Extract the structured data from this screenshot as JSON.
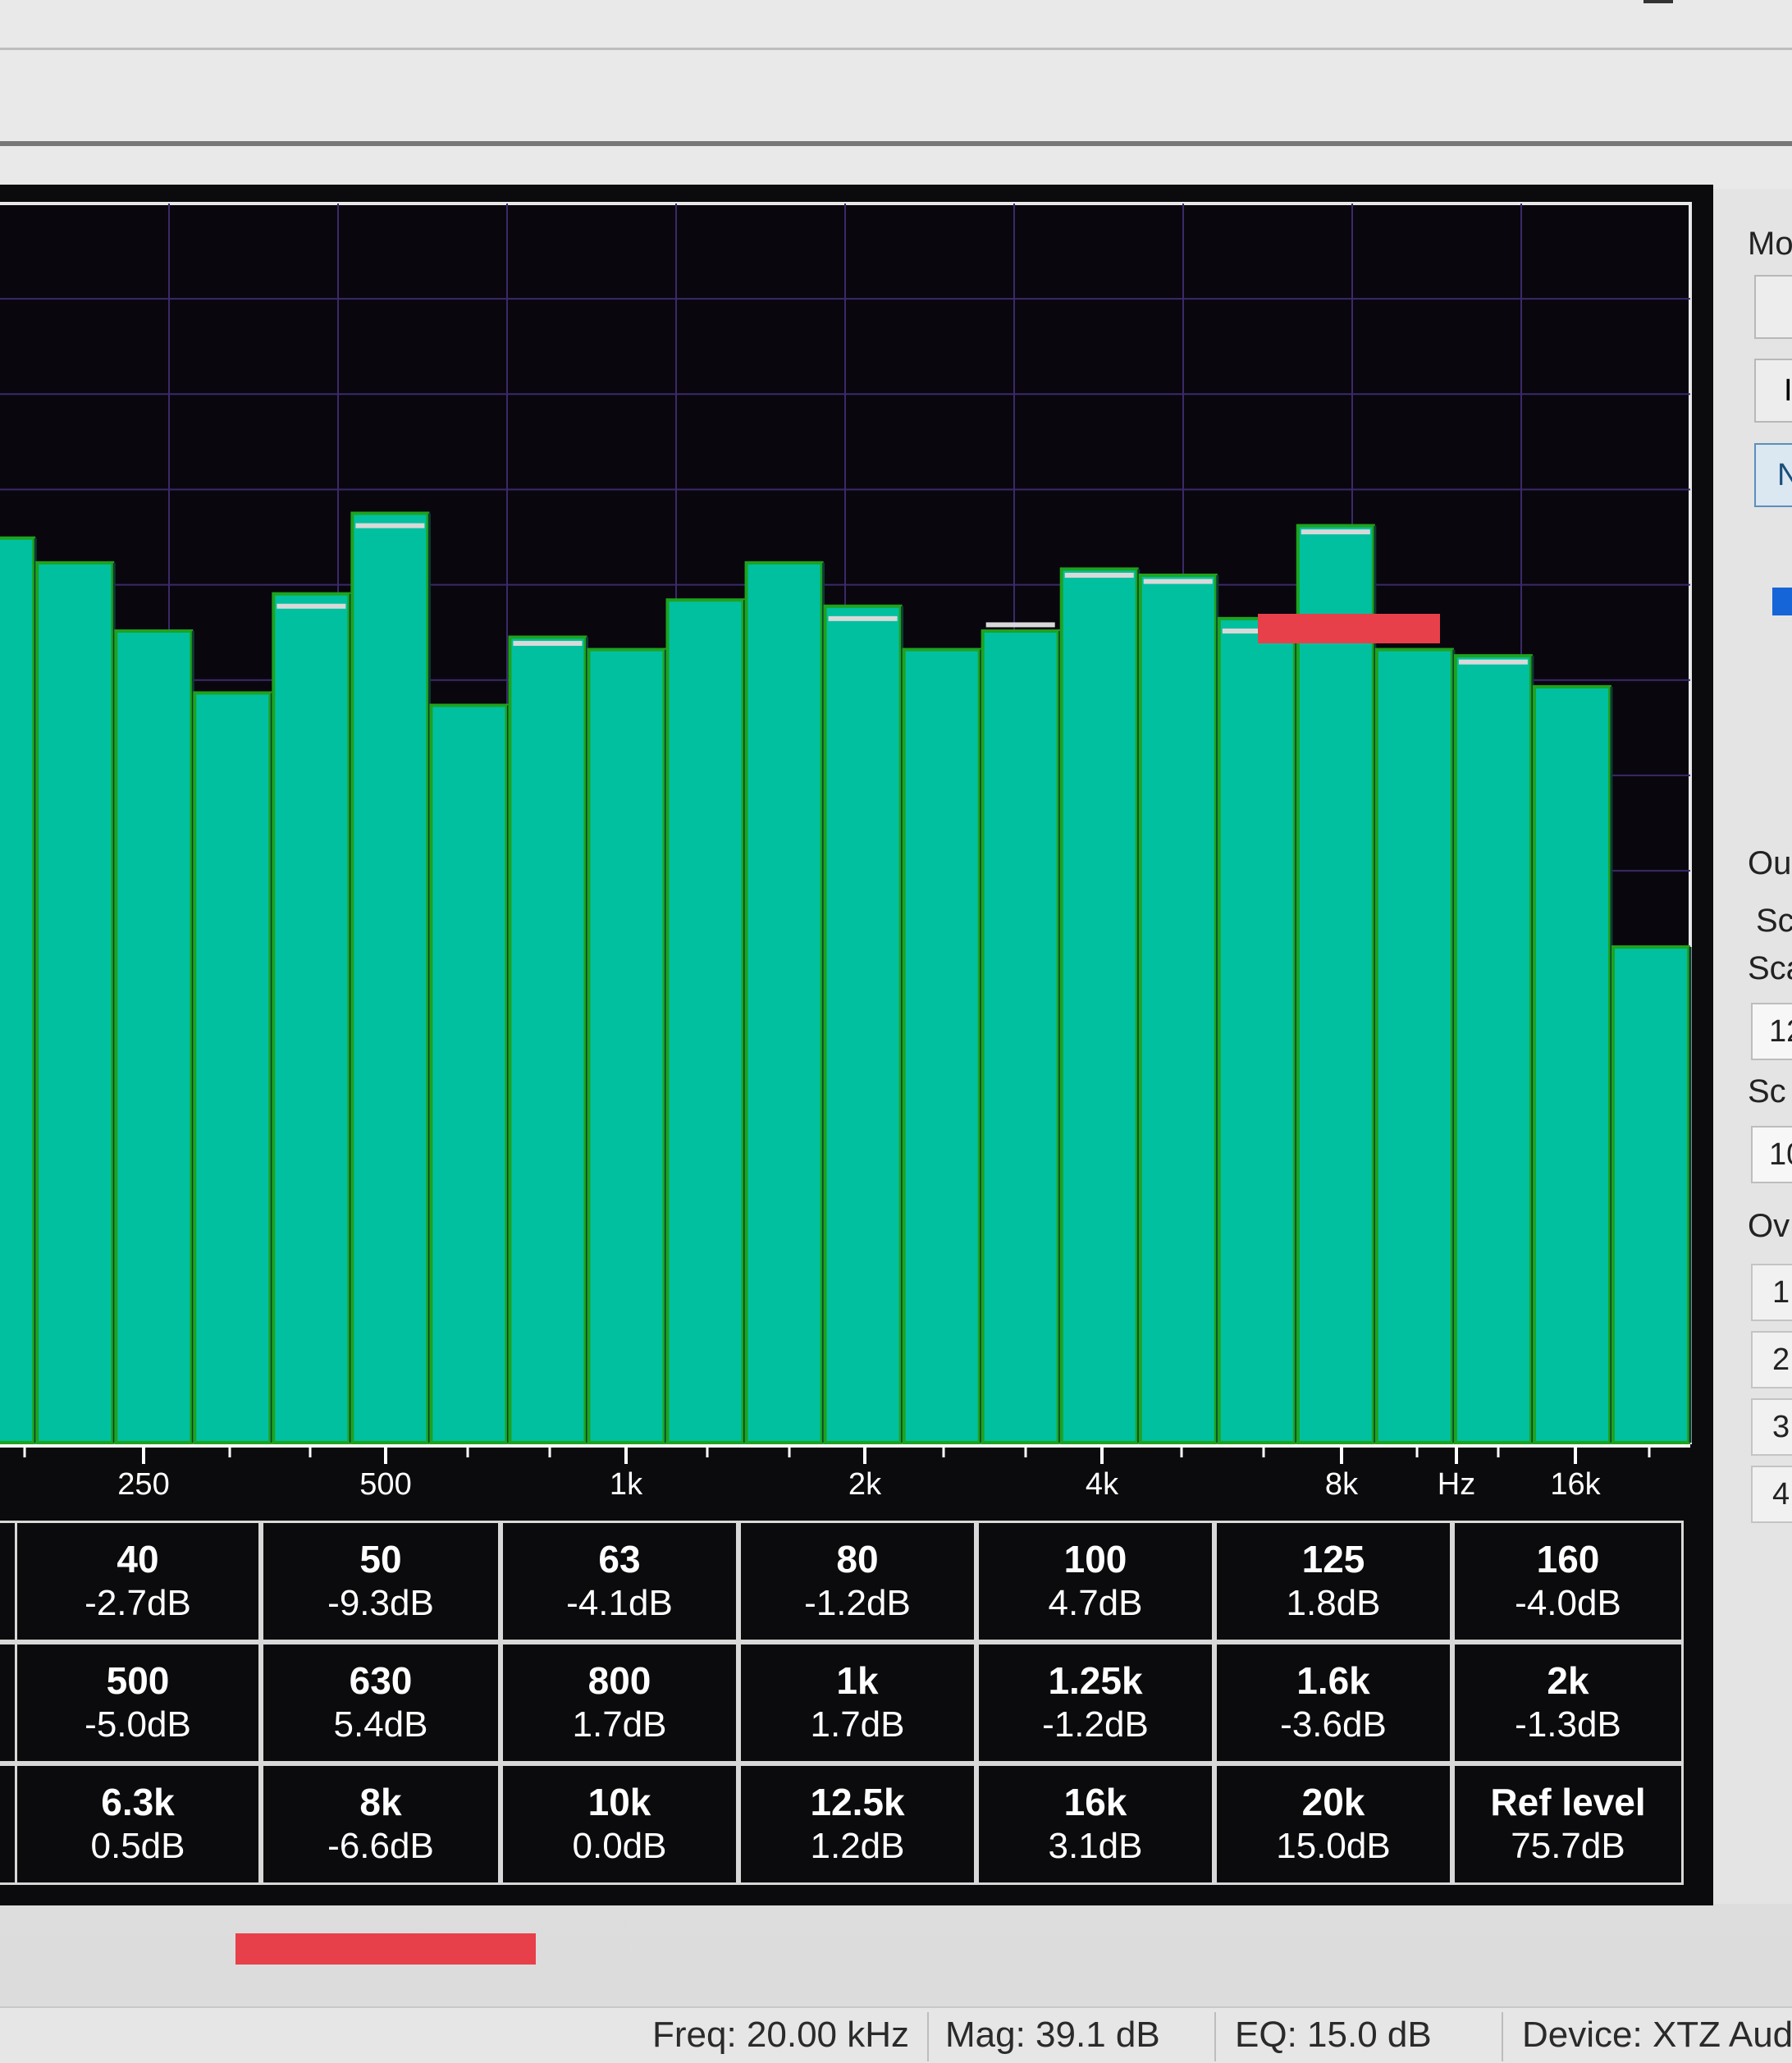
{
  "chart_data": {
    "type": "bar",
    "title": "",
    "xlabel": "",
    "ylabel": "",
    "x_unit_label": "Hz",
    "x_ticks": [
      "250",
      "500",
      "1k",
      "2k",
      "4k",
      "8k",
      "Hz",
      "16k"
    ],
    "levels": [
      0.73,
      0.71,
      0.655,
      0.605,
      0.685,
      0.75,
      0.595,
      0.65,
      0.64,
      0.68,
      0.71,
      0.675,
      0.64,
      0.655,
      0.705,
      0.7,
      0.665,
      0.74,
      0.64,
      0.635,
      0.61,
      0.4
    ],
    "peak_marker_levels": [
      null,
      null,
      null,
      null,
      0.675,
      0.74,
      null,
      0.645,
      null,
      null,
      null,
      0.665,
      null,
      0.66,
      0.7,
      0.695,
      0.655,
      0.735,
      null,
      0.63,
      null,
      null
    ],
    "bar_color": "#00c0a0",
    "bar_outline_color": "#1ea31e",
    "peak_marker_color": "#d9d9d9",
    "background_color": "#0a060e",
    "grid_color": "#3a2a6a"
  },
  "band_table": {
    "rows": [
      [
        {
          "freq": "40",
          "gain": "-2.7dB"
        },
        {
          "freq": "50",
          "gain": "-9.3dB"
        },
        {
          "freq": "63",
          "gain": "-4.1dB"
        },
        {
          "freq": "80",
          "gain": "-1.2dB"
        },
        {
          "freq": "100",
          "gain": "4.7dB"
        },
        {
          "freq": "125",
          "gain": "1.8dB"
        },
        {
          "freq": "160",
          "gain": "-4.0dB"
        }
      ],
      [
        {
          "freq": "500",
          "gain": "-5.0dB"
        },
        {
          "freq": "630",
          "gain": "5.4dB"
        },
        {
          "freq": "800",
          "gain": "1.7dB"
        },
        {
          "freq": "1k",
          "gain": "1.7dB"
        },
        {
          "freq": "1.25k",
          "gain": "-1.2dB"
        },
        {
          "freq": "1.6k",
          "gain": "-3.6dB"
        },
        {
          "freq": "2k",
          "gain": "-1.3dB"
        }
      ],
      [
        {
          "freq": "6.3k",
          "gain": "0.5dB"
        },
        {
          "freq": "8k",
          "gain": "-6.6dB"
        },
        {
          "freq": "10k",
          "gain": "0.0dB"
        },
        {
          "freq": "12.5k",
          "gain": "1.2dB"
        },
        {
          "freq": "16k",
          "gain": "3.1dB"
        },
        {
          "freq": "20k",
          "gain": "15.0dB"
        },
        {
          "freq": "Ref level",
          "gain": "75.7dB"
        }
      ]
    ]
  },
  "right_panel": {
    "labels": [
      "Mo",
      "Ou",
      "Sc",
      "Sca",
      "Sc",
      "Ov"
    ],
    "buttons": [
      "",
      "I",
      "N"
    ],
    "fields": [
      "12",
      "10"
    ],
    "numbers": [
      "1",
      "2",
      "3",
      "4"
    ]
  },
  "status_bar": {
    "freq": "Freq: 20.00 kHz",
    "mag": "Mag: 39.1 dB",
    "eq": "EQ: 15.0 dB",
    "device": "Device: XTZ Audio"
  },
  "annotation_color": "#e8404a"
}
